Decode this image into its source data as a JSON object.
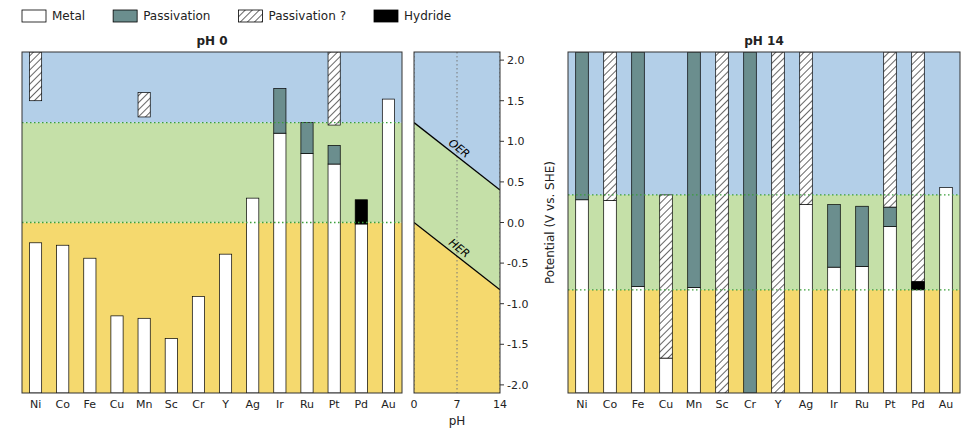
{
  "chart_data": [
    {
      "type": "range_bar",
      "title": "pH 0",
      "categories": [
        "Ni",
        "Co",
        "Fe",
        "Cu",
        "Mn",
        "Sc",
        "Cr",
        "Y",
        "Ag",
        "Ir",
        "Ru",
        "Pt",
        "Pd",
        "Au"
      ],
      "ylim": [
        -2.1,
        2.1
      ],
      "tick_labels": "x",
      "legend": "top",
      "band_colors": [
        "#f5d96e",
        "#c5e0a8",
        "#b3cfe8"
      ],
      "reference_lines": [
        1.23,
        0.0
      ],
      "reference_color": "#3a9e3a",
      "series": [
        {
          "name": "Metal",
          "type": "range",
          "color": "white",
          "values": [
            [
              -2.1,
              -0.25
            ],
            [
              -2.1,
              -0.28
            ],
            [
              -2.1,
              -0.44
            ],
            [
              -2.1,
              -1.15
            ],
            [
              -2.1,
              -1.18
            ],
            [
              -2.1,
              -1.43
            ],
            [
              -2.1,
              -0.91
            ],
            [
              -2.1,
              -0.39
            ],
            [
              -2.1,
              0.3
            ],
            [
              -2.1,
              1.1
            ],
            [
              -2.1,
              0.85
            ],
            [
              -2.1,
              0.72
            ],
            [
              -2.1,
              -0.01
            ],
            [
              -2.1,
              1.52
            ]
          ]
        },
        {
          "name": "Passivation",
          "type": "range",
          "color": "#6b8e8e",
          "values": [
            null,
            null,
            null,
            null,
            null,
            null,
            null,
            null,
            null,
            [
              1.1,
              1.65
            ],
            [
              0.85,
              1.23
            ],
            [
              0.72,
              0.95
            ],
            null,
            null
          ]
        },
        {
          "name": "Passivation ?",
          "type": "hatched_range",
          "color": "white",
          "values": [
            [
              1.5,
              2.1
            ],
            null,
            null,
            null,
            [
              1.3,
              1.6
            ],
            null,
            null,
            null,
            null,
            null,
            null,
            [
              1.2,
              2.1
            ],
            null,
            null
          ]
        },
        {
          "name": "Hydride",
          "type": "range",
          "color": "black",
          "values": [
            null,
            null,
            null,
            null,
            null,
            null,
            null,
            null,
            null,
            null,
            null,
            null,
            [
              -0.02,
              0.28
            ],
            null
          ]
        }
      ]
    },
    {
      "type": "line",
      "x": [
        0,
        14
      ],
      "xlim": [
        0,
        14
      ],
      "xticks": [
        0,
        7,
        14
      ],
      "ylim": [
        -2.1,
        2.1
      ],
      "yticks": [
        {
          "value": -2.0,
          "label": "-2.0"
        },
        -1.5,
        {
          "value": -1.0,
          "label": "-1.0"
        },
        -0.5,
        {
          "value": 0.0,
          "label": "0.0"
        },
        0.5,
        {
          "value": 1.0,
          "label": "1.0"
        },
        1.5,
        {
          "value": 2.0,
          "label": "2.0"
        }
      ],
      "x_label": "pH",
      "y_label": "Potential (V vs. SHE)",
      "grid": true,
      "band_colors": [
        "#f5d96e",
        "#c5e0a8",
        "#b3cfe8"
      ],
      "series": [
        {
          "name": "OER",
          "color": "black",
          "values": [
            1.23,
            0.4
          ]
        },
        {
          "name": "HER",
          "color": "black",
          "values": [
            0.0,
            -0.828
          ]
        }
      ]
    },
    {
      "type": "range_bar",
      "title": "pH 14",
      "categories": [
        "Ni",
        "Co",
        "Fe",
        "Cu",
        "Mn",
        "Sc",
        "Cr",
        "Y",
        "Ag",
        "Ir",
        "Ru",
        "Pt",
        "Pd",
        "Au"
      ],
      "ylim": [
        -2.1,
        2.1
      ],
      "tick_labels": "x",
      "band_colors": [
        "#f5d96e",
        "#c5e0a8",
        "#b3cfe8"
      ],
      "reference_lines": [
        0.34,
        -0.83
      ],
      "reference_color": "#3a9e3a",
      "series": [
        {
          "type": "range",
          "color": "white",
          "values": [
            [
              -2.1,
              0.28
            ],
            [
              -2.1,
              0.27
            ],
            [
              -2.1,
              -0.79
            ],
            [
              -2.1,
              -1.67
            ],
            [
              -2.1,
              -0.8
            ],
            null,
            null,
            null,
            [
              -2.1,
              0.22
            ],
            [
              -2.1,
              -0.55
            ],
            [
              -2.1,
              -0.54
            ],
            [
              -2.1,
              -0.05
            ],
            [
              -2.1,
              -0.73
            ],
            [
              -2.1,
              0.43
            ]
          ]
        },
        {
          "type": "range",
          "color": "#6b8e8e",
          "values": [
            [
              0.28,
              2.1
            ],
            null,
            [
              -0.79,
              2.1
            ],
            null,
            [
              -0.8,
              2.1
            ],
            null,
            [
              -2.1,
              2.1
            ],
            null,
            null,
            [
              -0.55,
              0.22
            ],
            [
              -0.54,
              0.2
            ],
            [
              -0.05,
              0.19
            ],
            null,
            null
          ]
        },
        {
          "type": "hatched_range",
          "color": "white",
          "values": [
            null,
            [
              0.27,
              2.1
            ],
            null,
            [
              -1.67,
              0.34
            ],
            null,
            [
              -2.1,
              2.1
            ],
            null,
            [
              -2.1,
              2.1
            ],
            [
              0.22,
              2.1
            ],
            null,
            null,
            [
              0.19,
              2.1
            ],
            [
              -0.73,
              2.1
            ],
            null
          ]
        },
        {
          "type": "range",
          "color": "black",
          "values": [
            null,
            null,
            null,
            null,
            null,
            null,
            null,
            null,
            null,
            null,
            null,
            null,
            [
              -0.83,
              -0.73
            ],
            null
          ]
        }
      ]
    }
  ]
}
